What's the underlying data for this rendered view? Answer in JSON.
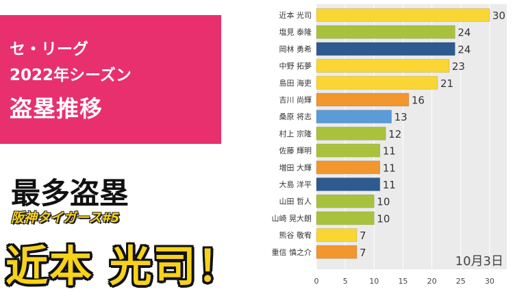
{
  "panel": {
    "line1": "セ・リーグ",
    "line2": "2022年シーズン",
    "line3": "盗塁推移"
  },
  "headline": "最多盗塁",
  "team": "阪神タイガース#5",
  "player": "近本 光司！",
  "date": "10月3日",
  "colors": {
    "panel": "#e8306e",
    "yellow": "#f9d634",
    "green": "#a9c23d",
    "navy": "#2e5b8f",
    "orange": "#f2962e",
    "blue": "#5a9bd8",
    "plot_bg": "#ebebeb"
  },
  "chart_data": {
    "type": "bar",
    "orientation": "horizontal",
    "categories": [
      "近本 光司",
      "塩見 泰隆",
      "岡林 勇希",
      "中野 拓夢",
      "島田 海吏",
      "吉川 尚輝",
      "桑原 将志",
      "村上 宗隆",
      "佐藤 輝明",
      "増田 大輝",
      "大島 洋平",
      "山田 哲人",
      "山崎 晃大朗",
      "熊谷 敬宥",
      "重信 慎之介"
    ],
    "values": [
      30,
      24,
      24,
      23,
      21,
      16,
      13,
      12,
      11,
      11,
      11,
      10,
      10,
      7,
      7
    ],
    "bar_colors": [
      "yellow",
      "green",
      "navy",
      "yellow",
      "yellow",
      "orange",
      "blue",
      "green",
      "green",
      "orange",
      "navy",
      "green",
      "green",
      "yellow",
      "orange"
    ],
    "xticks": [
      0,
      5,
      10,
      15,
      20,
      25,
      30
    ],
    "xlim": [
      0,
      33
    ],
    "grid": true
  }
}
